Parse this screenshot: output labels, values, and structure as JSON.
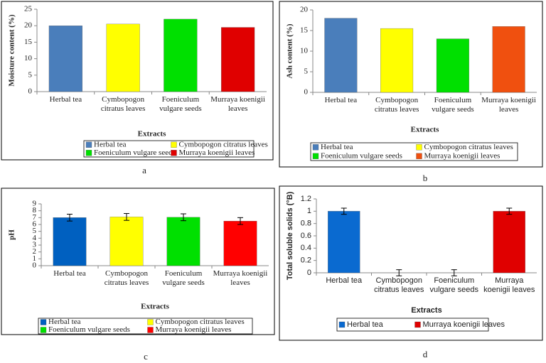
{
  "chart_data": [
    {
      "type": "bar",
      "panel_label": "a",
      "ylabel": "Moisture content (%)",
      "xlabel": "Extracts",
      "categories": [
        "Herbal tea",
        "Cymbopogon citratus leaves",
        "Foeniculum vulgare seeds",
        "Murraya koenigii leaves"
      ],
      "values": [
        20,
        20.5,
        22,
        19.5
      ],
      "colors": [
        "#4a7ebb",
        "#ffff00",
        "#00e000",
        "#e00000"
      ],
      "ylim": [
        0,
        25
      ],
      "yticks": [
        0,
        5,
        10,
        15,
        20,
        25
      ],
      "legend": [
        "Herbal tea",
        "Cymbopogon citratus leaves",
        "Foeniculum vulgare seeds",
        "Murraya koenigii leaves"
      ]
    },
    {
      "type": "bar",
      "panel_label": "b",
      "ylabel": "Ash content (%)",
      "xlabel": "Extracts",
      "categories": [
        "Herbal tea",
        "Cymbopogon citratus leaves",
        "Foeniculum vulgare seeds",
        "Murraya koenigii leaves"
      ],
      "values": [
        18,
        15.5,
        13,
        16
      ],
      "colors": [
        "#4a7ebb",
        "#ffff00",
        "#00e000",
        "#f0500f"
      ],
      "ylim": [
        0,
        20
      ],
      "yticks": [
        0,
        5,
        10,
        15,
        20
      ],
      "legend": [
        "Herbal tea",
        "Cymbopogon citratus leaves",
        "Foeniculum vulgare seeds",
        "Murraya koenigii leaves"
      ]
    },
    {
      "type": "bar",
      "panel_label": "c",
      "ylabel": "pH",
      "xlabel": "Extracts",
      "categories": [
        "Herbal tea",
        "Cymbopogon citratus leaves",
        "Foeniculum vulgare seeds",
        "Murraya koenigii leaves"
      ],
      "values": [
        7,
        7.1,
        7.05,
        6.5
      ],
      "errors": [
        0.5,
        0.5,
        0.5,
        0.5
      ],
      "colors": [
        "#0060c0",
        "#ffff00",
        "#00e000",
        "#ff0000"
      ],
      "ylim": [
        0,
        9
      ],
      "yticks": [
        0,
        1,
        2,
        3,
        4,
        5,
        6,
        7,
        8,
        9
      ],
      "legend": [
        "Herbal tea",
        "Cymbopogon citratus leaves",
        "Foeniculum vulgare seeds",
        "Murraya koenigii leaves"
      ]
    },
    {
      "type": "bar",
      "panel_label": "d",
      "ylabel": "Total soluble solids (°B)",
      "xlabel": "Extracts",
      "categories": [
        "Herbal tea",
        "Cymbopogon citratus leaves",
        "Foeniculum vulgare seeds",
        "Murraya koenigii leaves"
      ],
      "values": [
        1,
        0,
        0,
        1
      ],
      "errors": [
        0.05,
        0.05,
        0.05,
        0.05
      ],
      "colors": [
        "#0a6ad0",
        "#ffff00",
        "#00e000",
        "#e00000"
      ],
      "ylim": [
        0,
        1.2
      ],
      "yticks": [
        0,
        0.2,
        0.4,
        0.6,
        0.8,
        1,
        1.2
      ],
      "legend": [
        "Herbal tea",
        "Murraya koenigii leaves"
      ]
    }
  ]
}
